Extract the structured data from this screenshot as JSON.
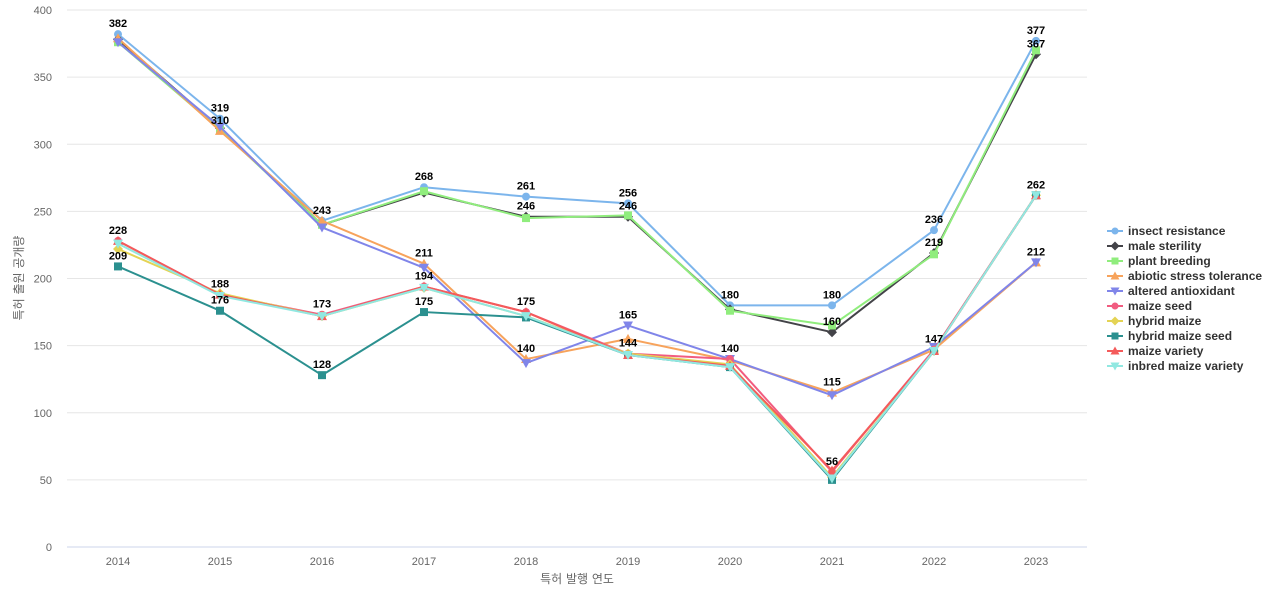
{
  "chart_data": {
    "type": "line",
    "title": "",
    "xlabel": "특허 발행 연도",
    "ylabel": "특허 출원 공개량",
    "ylim": [
      0,
      400
    ],
    "yticks": [
      0,
      50,
      100,
      150,
      200,
      250,
      300,
      350,
      400
    ],
    "grid": true,
    "legend_position": "right",
    "categories": [
      "2014",
      "2015",
      "2016",
      "2017",
      "2018",
      "2019",
      "2020",
      "2021",
      "2022",
      "2023"
    ],
    "series": [
      {
        "name": "insect resistance",
        "color": "#7cb5ec",
        "marker": "circle",
        "values": [
          382,
          319,
          243,
          268,
          261,
          256,
          180,
          180,
          236,
          377
        ]
      },
      {
        "name": "male sterility",
        "color": "#434348",
        "marker": "diamond",
        "values": [
          378,
          312,
          240,
          264,
          246,
          246,
          177,
          160,
          219,
          367
        ]
      },
      {
        "name": "plant breeding",
        "color": "#90ed7d",
        "marker": "square",
        "values": [
          376,
          311,
          240,
          265,
          245,
          247,
          176,
          165,
          218,
          370
        ]
      },
      {
        "name": "abiotic stress tolerance",
        "color": "#f7a35c",
        "marker": "triangle",
        "values": [
          379,
          310,
          243,
          211,
          140,
          155,
          139,
          115,
          147,
          212
        ]
      },
      {
        "name": "altered antioxidant",
        "color": "#8085e9",
        "marker": "triangle-down",
        "values": [
          376,
          313,
          238,
          208,
          137,
          165,
          140,
          113,
          149,
          212
        ]
      },
      {
        "name": "maize seed",
        "color": "#f15c80",
        "marker": "circle",
        "values": [
          228,
          188,
          173,
          194,
          175,
          144,
          140,
          56,
          147,
          262
        ]
      },
      {
        "name": "hybrid maize",
        "color": "#e4d354",
        "marker": "diamond",
        "values": [
          222,
          189,
          172,
          193,
          172,
          144,
          136,
          52,
          146,
          262
        ]
      },
      {
        "name": "hybrid maize seed",
        "color": "#2b908f",
        "marker": "square",
        "values": [
          209,
          176,
          128,
          175,
          171,
          143,
          134,
          50,
          146,
          262
        ]
      },
      {
        "name": "maize variety",
        "color": "#f45b5b",
        "marker": "triangle",
        "values": [
          228,
          188,
          172,
          194,
          175,
          143,
          135,
          57,
          146,
          262
        ]
      },
      {
        "name": "inbred maize variety",
        "color": "#91e8e1",
        "marker": "triangle-down",
        "values": [
          226,
          187,
          172,
          193,
          172,
          143,
          134,
          51,
          146,
          262
        ]
      }
    ],
    "data_labels": [
      {
        "category": "2014",
        "value": 382,
        "text": "382"
      },
      {
        "category": "2014",
        "value": 228,
        "text": "228"
      },
      {
        "category": "2014",
        "value": 209,
        "text": "209"
      },
      {
        "category": "2015",
        "value": 319,
        "text": "319"
      },
      {
        "category": "2015",
        "value": 310,
        "text": "310"
      },
      {
        "category": "2015",
        "value": 188,
        "text": "188"
      },
      {
        "category": "2015",
        "value": 176,
        "text": "176"
      },
      {
        "category": "2016",
        "value": 243,
        "text": "243"
      },
      {
        "category": "2016",
        "value": 173,
        "text": "173"
      },
      {
        "category": "2016",
        "value": 128,
        "text": "128"
      },
      {
        "category": "2017",
        "value": 268,
        "text": "268"
      },
      {
        "category": "2017",
        "value": 211,
        "text": "211"
      },
      {
        "category": "2017",
        "value": 194,
        "text": "194"
      },
      {
        "category": "2017",
        "value": 175,
        "text": "175"
      },
      {
        "category": "2018",
        "value": 261,
        "text": "261"
      },
      {
        "category": "2018",
        "value": 246,
        "text": "246"
      },
      {
        "category": "2018",
        "value": 175,
        "text": "175"
      },
      {
        "category": "2018",
        "value": 140,
        "text": "140"
      },
      {
        "category": "2019",
        "value": 256,
        "text": "256"
      },
      {
        "category": "2019",
        "value": 246,
        "text": "246"
      },
      {
        "category": "2019",
        "value": 165,
        "text": "165"
      },
      {
        "category": "2019",
        "value": 144,
        "text": "144"
      },
      {
        "category": "2020",
        "value": 180,
        "text": "180"
      },
      {
        "category": "2020",
        "value": 140,
        "text": "140"
      },
      {
        "category": "2021",
        "value": 180,
        "text": "180"
      },
      {
        "category": "2021",
        "value": 160,
        "text": "160"
      },
      {
        "category": "2021",
        "value": 115,
        "text": "115"
      },
      {
        "category": "2021",
        "value": 56,
        "text": "56"
      },
      {
        "category": "2022",
        "value": 236,
        "text": "236"
      },
      {
        "category": "2022",
        "value": 219,
        "text": "219"
      },
      {
        "category": "2022",
        "value": 147,
        "text": "147"
      },
      {
        "category": "2023",
        "value": 377,
        "text": "377"
      },
      {
        "category": "2023",
        "value": 367,
        "text": "367"
      },
      {
        "category": "2023",
        "value": 262,
        "text": "262"
      },
      {
        "category": "2023",
        "value": 212,
        "text": "212"
      }
    ]
  }
}
